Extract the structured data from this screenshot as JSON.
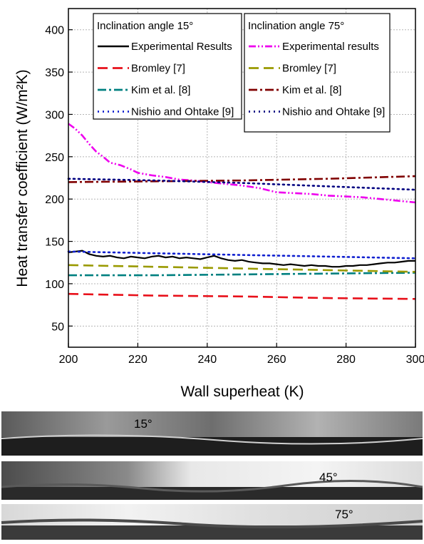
{
  "chart_data": {
    "type": "line",
    "xlabel": "Wall superheat (K)",
    "ylabel": "Heat transfer coefficient (W/m²K)",
    "xlim": [
      200,
      300
    ],
    "ylim": [
      25,
      425
    ],
    "xticks": [
      "200",
      "220",
      "240",
      "260",
      "280",
      "300"
    ],
    "yticks": [
      "50",
      "100",
      "150",
      "200",
      "250",
      "300",
      "350",
      "400"
    ],
    "grid": true,
    "legends": [
      {
        "title": "Inclination angle 15°",
        "position": "top-left",
        "entries": [
          "Experimental Results",
          "Bromley [7]",
          "Kim et al. [8]",
          "Nishio and Ohtake [9]"
        ]
      },
      {
        "title": "Inclination angle 75°",
        "position": "top-right",
        "entries": [
          "Experimental results",
          "Bromley [7]",
          "Kim et al. [8]",
          "Nishio and Ohtake [9]"
        ]
      }
    ],
    "series": [
      {
        "name": "Experimental Results",
        "group": "15",
        "color": "#000000",
        "style": "solid",
        "x": [
          200,
          202,
          204,
          206,
          208,
          210,
          212,
          214,
          216,
          218,
          220,
          222,
          224,
          226,
          228,
          230,
          232,
          234,
          236,
          238,
          240,
          242,
          244,
          246,
          248,
          250,
          252,
          254,
          256,
          258,
          260,
          262,
          264,
          266,
          268,
          270,
          272,
          274,
          276,
          278,
          280,
          282,
          284,
          286,
          288,
          290,
          292,
          294,
          296,
          298,
          300
        ],
        "y": [
          137,
          138,
          139,
          135,
          133,
          132,
          133,
          131,
          130,
          132,
          131,
          130,
          132,
          133,
          131,
          132,
          130,
          131,
          130,
          129,
          131,
          133,
          130,
          128,
          127,
          128,
          126,
          125,
          124,
          124,
          123,
          122,
          123,
          122,
          121,
          122,
          121,
          121,
          120,
          120,
          121,
          121,
          122,
          122,
          123,
          124,
          125,
          125,
          126,
          127,
          127
        ]
      },
      {
        "name": "Bromley [7]",
        "group": "15",
        "color": "#e8101a",
        "style": "dash",
        "x": [
          200,
          225,
          250,
          275,
          300
        ],
        "y": [
          88,
          86,
          85,
          83,
          82
        ]
      },
      {
        "name": "Kim et al. [8]",
        "group": "15",
        "color": "#008080",
        "style": "dashdot",
        "x": [
          200,
          225,
          250,
          275,
          300
        ],
        "y": [
          110,
          110,
          111,
          112,
          113
        ]
      },
      {
        "name": "Nishio and Ohtake [9]",
        "group": "15",
        "color": "#1020d0",
        "style": "dot",
        "x": [
          200,
          225,
          250,
          275,
          300
        ],
        "y": [
          138,
          136,
          134,
          132,
          130
        ]
      },
      {
        "name": "Experimental results",
        "group": "75",
        "color": "#ee00ee",
        "style": "dashdotdot",
        "x": [
          200,
          202,
          204,
          206,
          208,
          210,
          212,
          215,
          218,
          220,
          224,
          228,
          232,
          236,
          240,
          245,
          250,
          255,
          260,
          265,
          270,
          275,
          280,
          285,
          290,
          295,
          300
        ],
        "y": [
          289,
          283,
          275,
          265,
          256,
          250,
          243,
          240,
          235,
          231,
          228,
          226,
          223,
          222,
          220,
          218,
          216,
          213,
          208,
          207,
          206,
          204,
          203,
          202,
          200,
          198,
          196
        ]
      },
      {
        "name": "Bromley [7]",
        "group": "75",
        "color": "#9a9a00",
        "style": "dash",
        "x": [
          200,
          225,
          250,
          275,
          300
        ],
        "y": [
          122,
          120,
          118,
          116,
          114
        ]
      },
      {
        "name": "Kim et al. [8]",
        "group": "75",
        "color": "#800000",
        "style": "dashdot",
        "x": [
          200,
          225,
          250,
          275,
          300
        ],
        "y": [
          220,
          221,
          222,
          224,
          227
        ]
      },
      {
        "name": "Nishio and Ohtake [9]",
        "group": "75",
        "color": "#000080",
        "style": "dot",
        "x": [
          200,
          225,
          250,
          275,
          300
        ],
        "y": [
          224,
          222,
          219,
          215,
          211
        ]
      }
    ]
  },
  "photo_strips": [
    {
      "label": "15°"
    },
    {
      "label": "45°"
    },
    {
      "label": "75°"
    }
  ]
}
